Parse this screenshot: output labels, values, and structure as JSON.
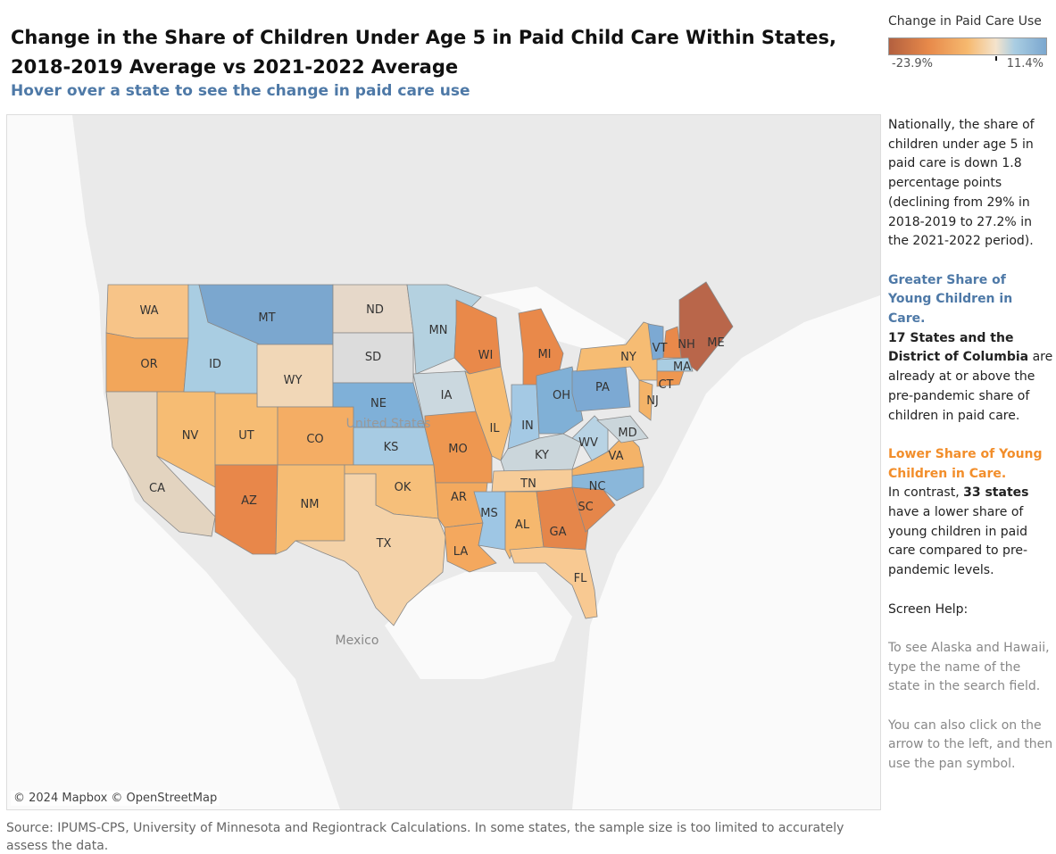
{
  "header": {
    "title": "Change in the Share of Children Under Age 5 in Paid Child Care Within States, 2018-2019 Average vs 2021-2022 Average",
    "subtitle": "Hover over a state to see the change in paid care use"
  },
  "legend": {
    "title": "Change in Paid Care Use",
    "min_label": "-23.9%",
    "max_label": "11.4%",
    "min": -23.9,
    "max": 11.4,
    "colors": [
      "#b3603f",
      "#e7894a",
      "#f6b96f",
      "#f4e3cc",
      "#a9cde2",
      "#7ba7cf"
    ]
  },
  "map": {
    "attribution": "© 2024 Mapbox  © OpenStreetMap",
    "country_labels": [
      "United States",
      "Mexico"
    ],
    "states": [
      {
        "abbr": "WA",
        "color": "#f7c488"
      },
      {
        "abbr": "OR",
        "color": "#f2a65a"
      },
      {
        "abbr": "CA",
        "color": "#e3d4c0"
      },
      {
        "abbr": "NV",
        "color": "#f6bc73"
      },
      {
        "abbr": "ID",
        "color": "#a9cde2"
      },
      {
        "abbr": "MT",
        "color": "#7ba7cf"
      },
      {
        "abbr": "WY",
        "color": "#f1d7b7"
      },
      {
        "abbr": "UT",
        "color": "#f6bc73"
      },
      {
        "abbr": "CO",
        "color": "#f4ad64"
      },
      {
        "abbr": "AZ",
        "color": "#e8874a"
      },
      {
        "abbr": "NM",
        "color": "#f6bc73"
      },
      {
        "abbr": "ND",
        "color": "#e6d8c9"
      },
      {
        "abbr": "SD",
        "color": "#dcdcdc"
      },
      {
        "abbr": "NE",
        "color": "#7fb0d8"
      },
      {
        "abbr": "KS",
        "color": "#a7cbe3"
      },
      {
        "abbr": "OK",
        "color": "#f6bf7a"
      },
      {
        "abbr": "TX",
        "color": "#f4d2a8"
      },
      {
        "abbr": "MN",
        "color": "#b4d1e0"
      },
      {
        "abbr": "IA",
        "color": "#cbd8df"
      },
      {
        "abbr": "MO",
        "color": "#ee9750"
      },
      {
        "abbr": "AR",
        "color": "#f3a95e"
      },
      {
        "abbr": "LA",
        "color": "#f4a85e"
      },
      {
        "abbr": "WI",
        "color": "#e9894a"
      },
      {
        "abbr": "IL",
        "color": "#f6bc73"
      },
      {
        "abbr": "MI",
        "color": "#e9894a"
      },
      {
        "abbr": "IN",
        "color": "#a4c9e4"
      },
      {
        "abbr": "OH",
        "color": "#80b0d6"
      },
      {
        "abbr": "KY",
        "color": "#cbd6db"
      },
      {
        "abbr": "TN",
        "color": "#f7cc98"
      },
      {
        "abbr": "MS",
        "color": "#9ec6e4"
      },
      {
        "abbr": "AL",
        "color": "#f6b86e"
      },
      {
        "abbr": "GA",
        "color": "#e5864a"
      },
      {
        "abbr": "FL",
        "color": "#f8c992"
      },
      {
        "abbr": "SC",
        "color": "#e5864a"
      },
      {
        "abbr": "NC",
        "color": "#8ab7da"
      },
      {
        "abbr": "VA",
        "color": "#f4b368"
      },
      {
        "abbr": "WV",
        "color": "#b8d3e4"
      },
      {
        "abbr": "PA",
        "color": "#7ca9d3"
      },
      {
        "abbr": "NY",
        "color": "#f6bc73"
      },
      {
        "abbr": "NJ",
        "color": "#f4b368"
      },
      {
        "abbr": "MD",
        "color": "#cbd6db"
      },
      {
        "abbr": "ME",
        "color": "#b9664a"
      },
      {
        "abbr": "NH",
        "color": "#e9894a"
      },
      {
        "abbr": "VT",
        "color": "#7ca9d3"
      },
      {
        "abbr": "MA",
        "color": "#a9cde2"
      },
      {
        "abbr": "CT",
        "color": "#ee9750"
      }
    ]
  },
  "panel": {
    "national": "Nationally, the share of children under age 5 in paid care is down 1.8 percentage points (declining from 29% in 2018-2019 to 27.2% in the 2021-2022 period).",
    "greater_heading": "Greater Share of Young Children in Care.",
    "greater_bold": "17 States and the District of Columbia",
    "greater_text": " are already at or above the pre-pandemic share of children in paid care.",
    "lower_heading": "Lower Share of Young Children in Care.",
    "lower_pre": "In contrast, ",
    "lower_bold": "33 states",
    "lower_text": " have a lower share of young children in paid care compared to pre-pandemic levels.",
    "help_heading": "Screen Help:",
    "help1": "To see Alaska and Hawaii, type the name of the state in the search field.",
    "help2": "You can also click on the arrow to the left, and then use the pan symbol."
  },
  "footer": {
    "source": "Source: IPUMS-CPS, University of Minnesota and Regiontrack Calculations.  In some states, the sample size is too limited to accurately assess the data."
  }
}
